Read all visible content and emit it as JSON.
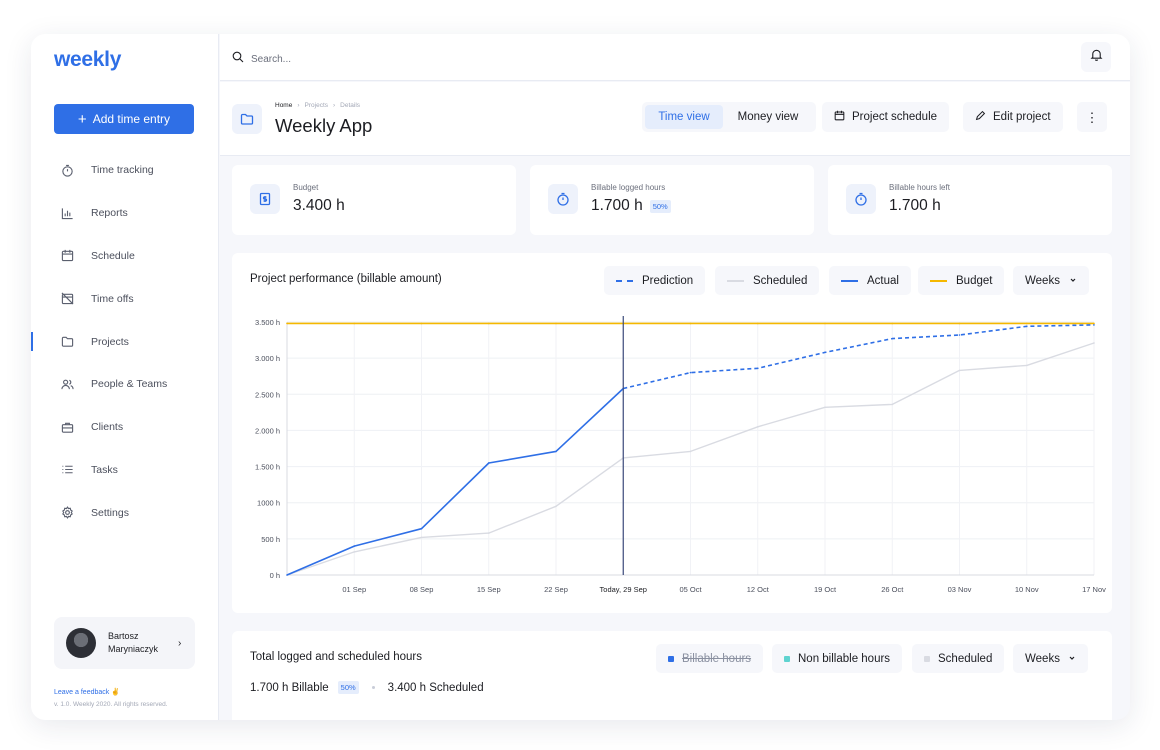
{
  "app": {
    "logo": "weekly"
  },
  "sidebar": {
    "add_button": "Add time entry",
    "items": [
      {
        "label": "Time tracking",
        "icon": "stopwatch-icon"
      },
      {
        "label": "Reports",
        "icon": "bar-chart-icon"
      },
      {
        "label": "Schedule",
        "icon": "calendar-icon"
      },
      {
        "label": "Time offs",
        "icon": "calendar-off-icon"
      },
      {
        "label": "Projects",
        "icon": "folder-icon",
        "active": true
      },
      {
        "label": "People & Teams",
        "icon": "people-icon"
      },
      {
        "label": "Clients",
        "icon": "briefcase-icon"
      },
      {
        "label": "Tasks",
        "icon": "list-icon"
      },
      {
        "label": "Settings",
        "icon": "gear-icon"
      }
    ],
    "user": {
      "first": "Bartosz",
      "last": "Maryniaczyk"
    },
    "feedback": "Leave a feedback ✌",
    "copyright": "v. 1.0. Weekly 2020. All rights reserved."
  },
  "topbar": {
    "search_placeholder": "Search..."
  },
  "header": {
    "breadcrumb": [
      "Home",
      "Projects",
      "Details"
    ],
    "title": "Weekly App",
    "view_tabs": [
      "Time view",
      "Money view"
    ],
    "active_view": "Time view",
    "schedule_button": "Project schedule",
    "edit_button": "Edit project"
  },
  "stats": [
    {
      "label": "Budget",
      "value": "3.400 h",
      "badge": ""
    },
    {
      "label": "Billable logged hours",
      "value": "1.700 h",
      "badge": "50%"
    },
    {
      "label": "Billable hours left",
      "value": "1.700 h",
      "badge": ""
    }
  ],
  "performance": {
    "title": "Project performance (billable amount)",
    "legend": [
      "Prediction",
      "Scheduled",
      "Actual",
      "Budget"
    ],
    "period": "Weeks"
  },
  "chart_data": {
    "type": "line",
    "x": [
      "",
      "01 Sep",
      "08 Sep",
      "15 Sep",
      "22 Sep",
      "Today, 29 Sep",
      "05 Oct",
      "12 Oct",
      "19 Oct",
      "26 Oct",
      "03 Nov",
      "10 Nov",
      "17 Nov"
    ],
    "today_index": 5,
    "y_ticks": [
      "0 h",
      "500 h",
      "1000 h",
      "1.500 h",
      "2.000 h",
      "2.500 h",
      "3.000 h",
      "3.500 h"
    ],
    "ylim": [
      0,
      3500
    ],
    "series": [
      {
        "name": "Actual",
        "color": "#2f6fe6",
        "style": "solid",
        "values": [
          0,
          400,
          640,
          1550,
          1710,
          2580,
          null,
          null,
          null,
          null,
          null,
          null,
          null
        ]
      },
      {
        "name": "Prediction",
        "color": "#2f6fe6",
        "style": "dashed",
        "values": [
          null,
          null,
          null,
          null,
          null,
          2580,
          2800,
          2860,
          3080,
          3270,
          3320,
          3440,
          3460
        ]
      },
      {
        "name": "Scheduled",
        "color": "#d9dbe2",
        "style": "solid",
        "values": [
          0,
          320,
          520,
          580,
          950,
          1620,
          1710,
          2050,
          2320,
          2360,
          2830,
          2900,
          3210
        ]
      },
      {
        "name": "Budget",
        "color": "#f5b800",
        "style": "solid",
        "values": [
          3480,
          3480,
          3480,
          3480,
          3480,
          3480,
          3480,
          3480,
          3480,
          3480,
          3480,
          3480,
          3480
        ]
      }
    ]
  },
  "totals": {
    "title": "Total logged and scheduled hours",
    "legend": [
      "Billable hours",
      "Non billable hours",
      "Scheduled"
    ],
    "period": "Weeks",
    "billable": "1.700 h Billable",
    "billable_pct": "50%",
    "scheduled": "3.400 h Scheduled"
  },
  "colors": {
    "accent": "#2f6fe6",
    "budget": "#f5b800",
    "non_billable": "#5fd3d0",
    "scheduled": "#d9dbe2"
  }
}
